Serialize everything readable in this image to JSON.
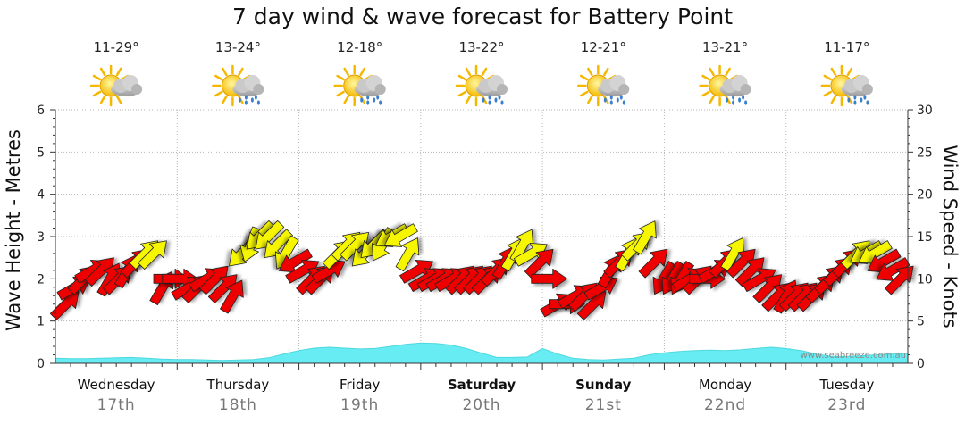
{
  "chart_data": {
    "type": "wind-wave",
    "title": "7 day wind & wave forecast for Battery Point",
    "ylabel_left": "Wave Height - Metres",
    "ylabel_right": "Wind Speed - Knots",
    "y_left_ticks": [
      "0",
      "1",
      "2",
      "3",
      "4",
      "5",
      "6"
    ],
    "y_right_ticks": [
      "0",
      "5",
      "10",
      "15",
      "20",
      "25",
      "30"
    ],
    "ylim_left": [
      0,
      6
    ],
    "ylim_right": [
      0,
      30
    ],
    "watermark": "www.seabreeze.com.au",
    "days": [
      {
        "name": "Wednesday",
        "num": "17th",
        "temp": "11-29°",
        "icon": "sun-cloud-icon",
        "bold": false
      },
      {
        "name": "Thursday",
        "num": "18th",
        "temp": "13-24°",
        "icon": "sun-cloud-rain-icon",
        "bold": false
      },
      {
        "name": "Friday",
        "num": "19th",
        "temp": "12-18°",
        "icon": "sun-cloud-rain-icon",
        "bold": false
      },
      {
        "name": "Saturday",
        "num": "20th",
        "temp": "13-22°",
        "icon": "sun-cloud-rain-icon",
        "bold": true
      },
      {
        "name": "Sunday",
        "num": "21st",
        "temp": "12-21°",
        "icon": "sun-cloud-rain-icon",
        "bold": true
      },
      {
        "name": "Monday",
        "num": "22nd",
        "temp": "13-21°",
        "icon": "sun-cloud-rain-icon",
        "bold": false
      },
      {
        "name": "Tuesday",
        "num": "23rd",
        "temp": "11-17°",
        "icon": "sun-cloud-rain-icon",
        "bold": false
      }
    ],
    "wave_height_m": [
      0.12,
      0.11,
      0.11,
      0.12,
      0.13,
      0.14,
      0.12,
      0.1,
      0.09,
      0.09,
      0.08,
      0.07,
      0.08,
      0.09,
      0.13,
      0.22,
      0.3,
      0.36,
      0.38,
      0.36,
      0.34,
      0.35,
      0.4,
      0.45,
      0.48,
      0.47,
      0.43,
      0.35,
      0.24,
      0.14,
      0.14,
      0.15,
      0.35,
      0.22,
      0.12,
      0.09,
      0.08,
      0.1,
      0.12,
      0.2,
      0.25,
      0.28,
      0.3,
      0.31,
      0.3,
      0.32,
      0.35,
      0.38,
      0.35,
      0.3,
      0.22,
      0.16,
      0.16,
      0.18,
      0.2,
      0.22,
      0.22
    ],
    "wind_speed_kts": [
      7,
      9,
      10,
      11,
      11,
      10,
      10,
      11,
      12,
      13,
      13,
      9,
      10,
      10,
      9,
      9,
      10,
      10,
      9,
      8,
      13,
      14,
      15,
      15,
      14,
      13,
      12,
      11,
      10,
      10,
      11,
      13,
      14,
      14,
      13,
      14,
      14,
      15,
      15,
      13,
      11,
      10,
      10,
      10,
      10,
      10,
      10,
      10,
      10,
      11,
      12,
      13,
      14,
      13,
      12,
      10,
      7,
      7,
      8,
      8,
      7,
      9,
      11,
      12,
      13,
      14,
      15,
      12,
      10,
      10,
      10,
      10,
      10,
      10,
      11,
      12,
      13,
      12,
      11,
      10,
      9,
      8,
      8,
      8,
      8,
      8,
      9,
      10,
      11,
      12,
      13,
      13,
      13,
      12,
      11,
      10
    ],
    "wind_dir_deg": [
      45,
      60,
      45,
      60,
      45,
      30,
      45,
      30,
      45,
      45,
      45,
      30,
      90,
      90,
      60,
      45,
      60,
      45,
      45,
      30,
      225,
      200,
      225,
      225,
      225,
      210,
      240,
      60,
      45,
      45,
      60,
      45,
      45,
      45,
      225,
      225,
      210,
      240,
      240,
      30,
      60,
      60,
      60,
      60,
      60,
      45,
      45,
      45,
      45,
      45,
      30,
      30,
      30,
      60,
      45,
      90,
      60,
      90,
      60,
      45,
      45,
      60,
      30,
      45,
      30,
      45,
      30,
      45,
      210,
      210,
      210,
      60,
      45,
      90,
      60,
      45,
      30,
      45,
      45,
      60,
      45,
      45,
      30,
      45,
      45,
      45,
      45,
      45,
      45,
      45,
      45,
      240,
      240,
      240,
      240,
      45
    ]
  }
}
